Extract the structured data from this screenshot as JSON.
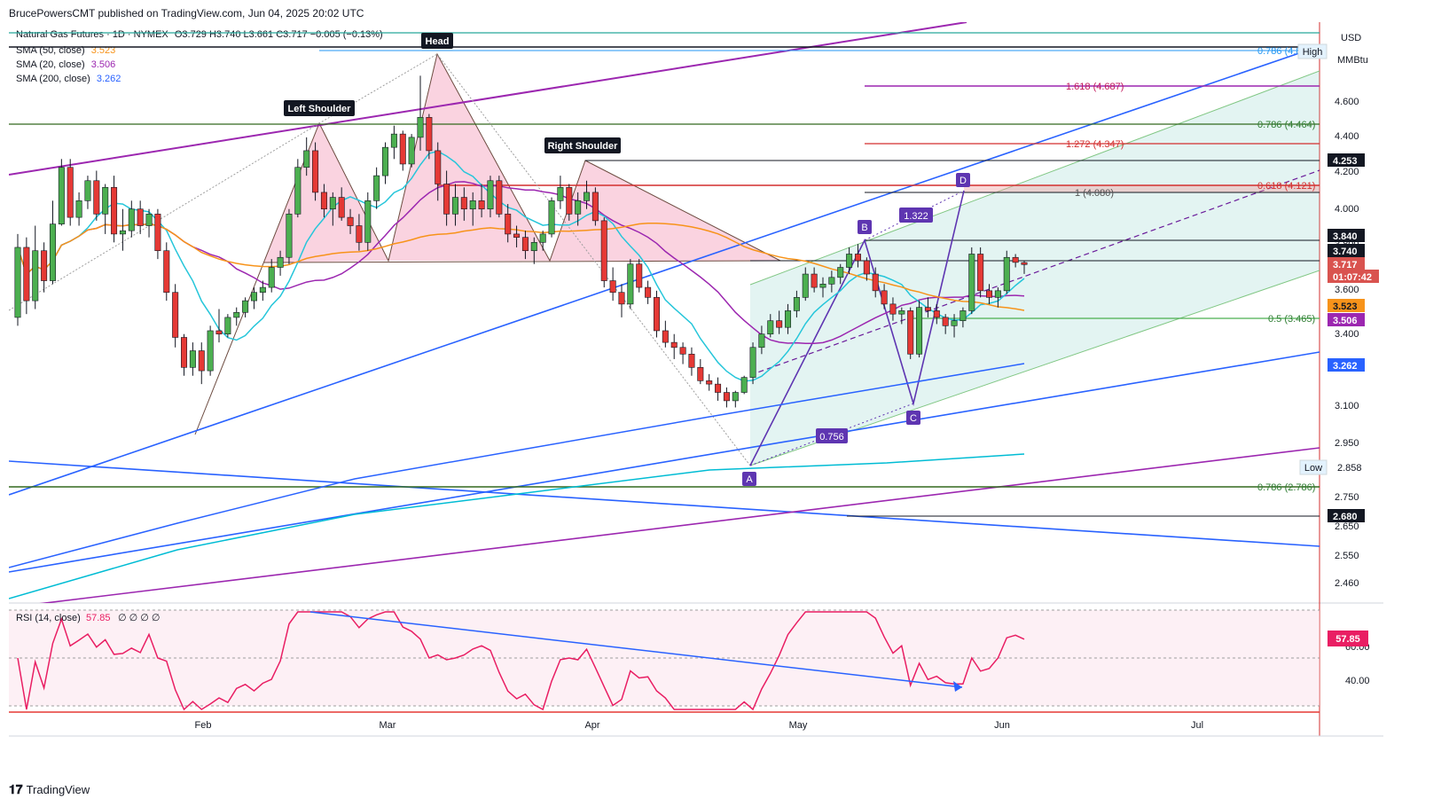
{
  "header": {
    "published": "BrucePowersCMT published on TradingView.com, Jun 04, 2025 20:02 UTC"
  },
  "legend": {
    "symbol": "Natural Gas Futures · 1D · NYMEX",
    "ohlc": "O3.729  H3.740  L3.661  C3.717  −0.005 (−0.13%)",
    "sma50": {
      "label": "SMA (50, close)",
      "value": "3.523",
      "color": "#f7931a"
    },
    "sma20": {
      "label": "SMA (20, close)",
      "value": "3.506",
      "color": "#9c27b0"
    },
    "sma200": {
      "label": "SMA (200, close)",
      "value": "3.262",
      "color": "#2962ff"
    }
  },
  "axis": {
    "currency": "USD",
    "unit": "MMBtu",
    "price_ticks": [
      "4.600",
      "4.400",
      "4.200",
      "4.000",
      "3.800",
      "3.600",
      "3.400",
      "3.100",
      "2.950",
      "2.750",
      "2.650",
      "2.550",
      "2.460"
    ],
    "x_ticks": [
      "Feb",
      "Mar",
      "Apr",
      "May",
      "Jun",
      "Jul"
    ]
  },
  "price_tags": [
    {
      "text": "4.253",
      "bg": "#131722",
      "fg": "#ffffff"
    },
    {
      "text": "3.840",
      "bg": "#131722",
      "fg": "#ffffff"
    },
    {
      "text": "3.740",
      "bg": "#131722",
      "fg": "#ffffff"
    },
    {
      "text": "3.717",
      "bg": "#d9534f",
      "fg": "#ffffff"
    },
    {
      "text": "01:07:42",
      "bg": "#d9534f",
      "fg": "#ffffff"
    },
    {
      "text": "3.523",
      "bg": "#f7931a",
      "fg": "#131722"
    },
    {
      "text": "3.506",
      "bg": "#9c27b0",
      "fg": "#ffffff"
    },
    {
      "text": "3.262",
      "bg": "#2962ff",
      "fg": "#ffffff"
    },
    {
      "text": "2.680",
      "bg": "#131722",
      "fg": "#ffffff"
    }
  ],
  "annotations": {
    "head": "Head",
    "left_shoulder": "Left Shoulder",
    "right_shoulder": "Right Shoulder",
    "point_a": "A",
    "point_b": "B",
    "point_c": "C",
    "point_d": "D",
    "ratio_1": "1.322",
    "ratio_2": "0.756",
    "high": "High",
    "low": "Low",
    "low_value": "2.858"
  },
  "fib_levels": [
    {
      "text": "0.786 (4.8",
      "color": "#2196f3"
    },
    {
      "text": "1.618 (4.687)",
      "color": "#c2185b"
    },
    {
      "text": "0.786 (4.464)",
      "color": "#2e7d32"
    },
    {
      "text": "1.272 (4.347)",
      "color": "#d32f2f"
    },
    {
      "text": "0.618 (4.121)",
      "color": "#d32f2f"
    },
    {
      "text": "1 (4.080)",
      "color": "#555555"
    },
    {
      "text": "0.5 (3.465)",
      "color": "#2e7d32"
    },
    {
      "text": "0.786 (2.786)",
      "color": "#2e7d32"
    }
  ],
  "rsi": {
    "label": "RSI (14, close)",
    "value": "57.85",
    "extras": "∅ ∅ ∅ ∅",
    "ticks": [
      "60.00",
      "40.00"
    ],
    "color": "#e91e63"
  },
  "footer": {
    "brand": "TradingView"
  },
  "chart_data": {
    "type": "candlestick",
    "title": "Natural Gas Futures · 1D · NYMEX",
    "x_range": [
      "2025-01-08",
      "2025-07-28"
    ],
    "y_range": [
      2.4,
      4.93
    ],
    "current_close": 3.717,
    "series": [
      {
        "name": "SMA (50, close)",
        "last": 3.523
      },
      {
        "name": "SMA (20, close)",
        "last": 3.506
      },
      {
        "name": "SMA (200, close)",
        "last": 3.262
      }
    ],
    "rsi_last": 57.85,
    "candles": [
      [
        3.4,
        3.9,
        3.35,
        3.82
      ],
      [
        3.82,
        3.88,
        3.42,
        3.5
      ],
      [
        3.5,
        3.95,
        3.45,
        3.8
      ],
      [
        3.8,
        3.85,
        3.55,
        3.62
      ],
      [
        3.62,
        4.1,
        3.6,
        3.96
      ],
      [
        3.96,
        4.35,
        3.95,
        4.3
      ],
      [
        4.3,
        4.35,
        3.95,
        4.0
      ],
      [
        4.0,
        4.15,
        3.95,
        4.1
      ],
      [
        4.1,
        4.25,
        4.05,
        4.22
      ],
      [
        4.22,
        4.28,
        3.98,
        4.02
      ],
      [
        4.02,
        4.2,
        3.9,
        4.18
      ],
      [
        4.18,
        4.25,
        3.85,
        3.9
      ],
      [
        3.9,
        4.05,
        3.8,
        3.92
      ],
      [
        3.92,
        4.1,
        3.88,
        4.05
      ],
      [
        4.05,
        4.1,
        3.9,
        3.95
      ],
      [
        3.95,
        4.05,
        3.88,
        4.02
      ],
      [
        4.02,
        4.05,
        3.75,
        3.8
      ],
      [
        3.8,
        3.85,
        3.5,
        3.55
      ],
      [
        3.55,
        3.6,
        3.22,
        3.28
      ],
      [
        3.28,
        3.3,
        3.05,
        3.1
      ],
      [
        3.1,
        3.25,
        3.05,
        3.2
      ],
      [
        3.2,
        3.25,
        3.0,
        3.08
      ],
      [
        3.08,
        3.35,
        3.05,
        3.32
      ],
      [
        3.32,
        3.45,
        3.25,
        3.3
      ],
      [
        3.3,
        3.42,
        3.28,
        3.4
      ],
      [
        3.4,
        3.46,
        3.35,
        3.43
      ],
      [
        3.43,
        3.52,
        3.4,
        3.5
      ],
      [
        3.5,
        3.58,
        3.45,
        3.55
      ],
      [
        3.55,
        3.62,
        3.5,
        3.58
      ],
      [
        3.58,
        3.75,
        3.55,
        3.7
      ],
      [
        3.7,
        3.8,
        3.65,
        3.76
      ],
      [
        3.76,
        4.05,
        3.72,
        4.02
      ],
      [
        4.02,
        4.35,
        4.0,
        4.3
      ],
      [
        4.3,
        4.48,
        4.25,
        4.4
      ],
      [
        4.4,
        4.45,
        4.1,
        4.15
      ],
      [
        4.15,
        4.2,
        4.0,
        4.05
      ],
      [
        4.05,
        4.15,
        3.95,
        4.12
      ],
      [
        4.12,
        4.18,
        3.98,
        4.0
      ],
      [
        4.0,
        4.05,
        3.9,
        3.95
      ],
      [
        3.95,
        4.02,
        3.8,
        3.85
      ],
      [
        3.85,
        4.15,
        3.8,
        4.1
      ],
      [
        4.1,
        4.3,
        4.05,
        4.25
      ],
      [
        4.25,
        4.45,
        4.2,
        4.42
      ],
      [
        4.42,
        4.55,
        4.35,
        4.5
      ],
      [
        4.5,
        4.52,
        4.28,
        4.32
      ],
      [
        4.32,
        4.5,
        4.3,
        4.48
      ],
      [
        4.48,
        4.85,
        4.4,
        4.6
      ],
      [
        4.6,
        4.62,
        4.35,
        4.4
      ],
      [
        4.4,
        4.45,
        4.1,
        4.2
      ],
      [
        4.2,
        4.28,
        3.95,
        4.02
      ],
      [
        4.02,
        4.2,
        3.95,
        4.12
      ],
      [
        4.12,
        4.18,
        3.98,
        4.05
      ],
      [
        4.05,
        4.15,
        3.95,
        4.1
      ],
      [
        4.1,
        4.2,
        4.0,
        4.05
      ],
      [
        4.05,
        4.25,
        4.0,
        4.22
      ],
      [
        4.22,
        4.25,
        4.0,
        4.02
      ],
      [
        4.02,
        4.08,
        3.85,
        3.9
      ],
      [
        3.9,
        3.95,
        3.82,
        3.88
      ],
      [
        3.88,
        3.92,
        3.75,
        3.8
      ],
      [
        3.8,
        3.88,
        3.72,
        3.85
      ],
      [
        3.85,
        3.92,
        3.8,
        3.9
      ],
      [
        3.9,
        4.12,
        3.88,
        4.1
      ],
      [
        4.1,
        4.25,
        4.05,
        4.18
      ],
      [
        4.18,
        4.2,
        3.98,
        4.02
      ],
      [
        4.02,
        4.15,
        3.95,
        4.1
      ],
      [
        4.1,
        4.22,
        4.05,
        4.15
      ],
      [
        4.15,
        4.18,
        3.95,
        3.98
      ],
      [
        3.98,
        4.0,
        3.58,
        3.62
      ],
      [
        3.62,
        3.7,
        3.5,
        3.55
      ],
      [
        3.55,
        3.6,
        3.4,
        3.48
      ],
      [
        3.48,
        3.75,
        3.45,
        3.72
      ],
      [
        3.72,
        3.75,
        3.55,
        3.58
      ],
      [
        3.58,
        3.62,
        3.48,
        3.52
      ],
      [
        3.52,
        3.56,
        3.28,
        3.32
      ],
      [
        3.32,
        3.38,
        3.22,
        3.25
      ],
      [
        3.25,
        3.3,
        3.15,
        3.22
      ],
      [
        3.22,
        3.25,
        3.12,
        3.18
      ],
      [
        3.18,
        3.22,
        3.05,
        3.1
      ],
      [
        3.1,
        3.15,
        3.0,
        3.02
      ],
      [
        3.02,
        3.06,
        2.96,
        3.0
      ],
      [
        3.0,
        3.04,
        2.9,
        2.95
      ],
      [
        2.95,
        2.98,
        2.86,
        2.9
      ],
      [
        2.9,
        2.96,
        2.86,
        2.95
      ],
      [
        2.95,
        3.05,
        2.94,
        3.04
      ],
      [
        3.04,
        3.25,
        3.0,
        3.22
      ],
      [
        3.22,
        3.35,
        3.18,
        3.3
      ],
      [
        3.3,
        3.42,
        3.28,
        3.38
      ],
      [
        3.38,
        3.44,
        3.3,
        3.34
      ],
      [
        3.34,
        3.48,
        3.3,
        3.44
      ],
      [
        3.44,
        3.56,
        3.4,
        3.52
      ],
      [
        3.52,
        3.7,
        3.5,
        3.66
      ],
      [
        3.66,
        3.7,
        3.55,
        3.58
      ],
      [
        3.58,
        3.64,
        3.52,
        3.6
      ],
      [
        3.6,
        3.68,
        3.55,
        3.64
      ],
      [
        3.64,
        3.72,
        3.6,
        3.7
      ],
      [
        3.7,
        3.82,
        3.66,
        3.78
      ],
      [
        3.78,
        3.84,
        3.7,
        3.74
      ],
      [
        3.74,
        3.76,
        3.62,
        3.66
      ],
      [
        3.66,
        3.7,
        3.52,
        3.56
      ],
      [
        3.56,
        3.6,
        3.45,
        3.48
      ],
      [
        3.48,
        3.52,
        3.38,
        3.42
      ],
      [
        3.42,
        3.46,
        3.36,
        3.44
      ],
      [
        3.44,
        3.46,
        3.15,
        3.18
      ],
      [
        3.18,
        3.5,
        3.16,
        3.46
      ],
      [
        3.46,
        3.52,
        3.4,
        3.44
      ],
      [
        3.44,
        3.48,
        3.36,
        3.4
      ],
      [
        3.4,
        3.42,
        3.3,
        3.35
      ],
      [
        3.35,
        3.42,
        3.28,
        3.38
      ],
      [
        3.38,
        3.46,
        3.34,
        3.44
      ],
      [
        3.44,
        3.82,
        3.42,
        3.78
      ],
      [
        3.78,
        3.82,
        3.52,
        3.56
      ],
      [
        3.56,
        3.6,
        3.48,
        3.52
      ],
      [
        3.52,
        3.58,
        3.46,
        3.56
      ],
      [
        3.56,
        3.8,
        3.54,
        3.76
      ],
      [
        3.76,
        3.78,
        3.7,
        3.73
      ],
      [
        3.729,
        3.74,
        3.661,
        3.717
      ]
    ]
  }
}
